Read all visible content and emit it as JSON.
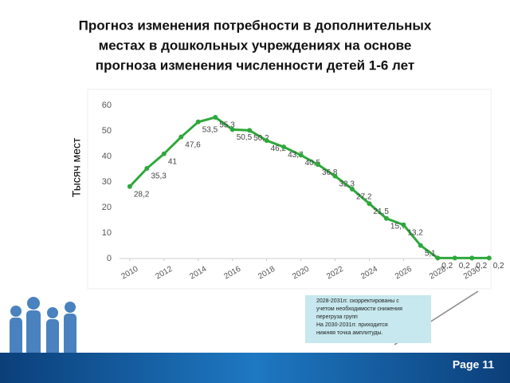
{
  "chart_data": {
    "type": "line",
    "title": [
      "Прогноз изменения потребности в дополнительных",
      "местах в дошкольных учреждениях на основе",
      "прогноза изменения численности детей 1-6 лет"
    ],
    "y_label": "Тысяч мест",
    "x": [
      2010,
      2011,
      2012,
      2013,
      2014,
      2015,
      2016,
      2017,
      2018,
      2019,
      2020,
      2021,
      2022,
      2023,
      2024,
      2025,
      2026,
      2027,
      2028,
      2029,
      2030,
      2031
    ],
    "series": [
      {
        "color": "#2ea83c",
        "values": [
          28.2,
          35.3,
          41,
          47.6,
          53.5,
          55.3,
          50.5,
          50.2,
          46.2,
          43.7,
          40.5,
          36.8,
          32.3,
          27.2,
          21.5,
          15.7,
          13.2,
          5.1,
          0.2,
          0.2,
          0.2,
          0.2
        ],
        "value_labels": [
          "28,2",
          "35,3",
          "41",
          "47,6",
          "53,5",
          "55,3",
          "50,5",
          "50,2",
          "46,2",
          "43,7",
          "40,5",
          "36,8",
          "32,3",
          "27,2",
          "21,5",
          "15,7",
          "13,2",
          "5,1",
          "0,2",
          "0,2",
          "0,2",
          "0,2"
        ]
      }
    ],
    "xlim": [
      2009.4,
      2031.2
    ],
    "xticks": [
      2010,
      2012,
      2014,
      2016,
      2018,
      2020,
      2022,
      2024,
      2026,
      2028,
      2030
    ],
    "ylim": [
      0,
      60
    ],
    "yticks": [
      0,
      10,
      20,
      30,
      40,
      50,
      60
    ],
    "grid": false
  },
  "note": [
    "2028-2031гг. скорректированы с",
    "учетом необходимости снижения",
    "перегруза групп",
    "На 2030-2031гг. приходится",
    "нижняя точка амплитуды."
  ],
  "page": "Page 11"
}
